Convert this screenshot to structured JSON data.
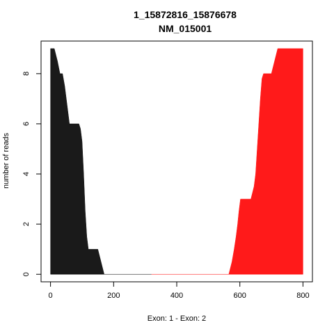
{
  "chart_data": {
    "type": "area",
    "title": "1_15872816_15876678",
    "subtitle": "NM_015001",
    "xlabel": "Exon: 1 - Exon: 2",
    "ylabel": "number of reads",
    "xlim": [
      -30,
      830
    ],
    "ylim": [
      -0.3,
      9.3
    ],
    "x_ticks": [
      0,
      200,
      400,
      600,
      800
    ],
    "y_ticks": [
      0,
      2,
      4,
      6,
      8
    ],
    "grid": false,
    "legend": "none",
    "series": [
      {
        "color": "#1a1a1a",
        "points": [
          [
            0,
            9
          ],
          [
            12,
            9
          ],
          [
            22,
            8.5
          ],
          [
            30,
            8
          ],
          [
            38,
            8
          ],
          [
            45,
            7.5
          ],
          [
            50,
            7
          ],
          [
            55,
            6.5
          ],
          [
            60,
            6
          ],
          [
            90,
            6
          ],
          [
            95,
            5.8
          ],
          [
            100,
            5.3
          ],
          [
            105,
            4
          ],
          [
            110,
            2.5
          ],
          [
            115,
            1.5
          ],
          [
            120,
            1
          ],
          [
            150,
            1
          ],
          [
            160,
            0.5
          ],
          [
            170,
            0
          ],
          [
            320,
            0
          ]
        ]
      },
      {
        "color": "#ff1a1a",
        "points": [
          [
            320,
            0
          ],
          [
            565,
            0
          ],
          [
            575,
            0.5
          ],
          [
            582,
            1
          ],
          [
            588,
            1.5
          ],
          [
            593,
            2
          ],
          [
            597,
            2.5
          ],
          [
            602,
            3
          ],
          [
            635,
            3
          ],
          [
            645,
            3.5
          ],
          [
            650,
            4
          ],
          [
            655,
            5
          ],
          [
            660,
            6
          ],
          [
            665,
            7
          ],
          [
            670,
            7.8
          ],
          [
            675,
            8
          ],
          [
            700,
            8
          ],
          [
            710,
            8.5
          ],
          [
            720,
            9
          ],
          [
            800,
            9
          ]
        ]
      }
    ]
  }
}
